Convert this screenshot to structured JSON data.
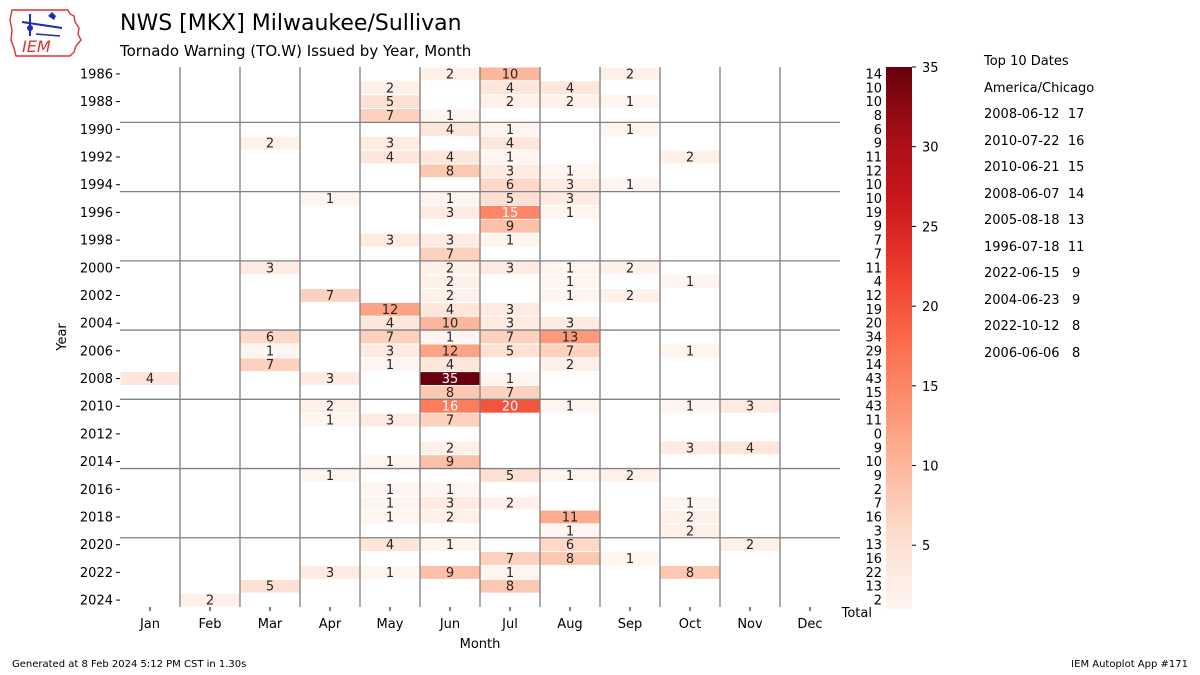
{
  "header": {
    "title": "NWS [MKX] Milwaukee/Sullivan",
    "subtitle": "Tornado Warning (TO.W) Issued by Year, Month",
    "logo_text": "IEM"
  },
  "footer": {
    "generated": "Generated at 8 Feb 2024 5:12 PM CST in 1.30s",
    "app": "IEM Autoplot App #171"
  },
  "top10": {
    "title": "Top 10 Dates",
    "timezone": "America/Chicago",
    "entries": [
      "2008-06-12  17",
      "2010-07-22  16",
      "2010-06-21  15",
      "2008-06-07  14",
      "2005-08-18  13",
      "1996-07-18  11",
      "2022-06-15   9",
      "2004-06-23   9",
      "2022-10-12   8",
      "2006-06-06   8"
    ]
  },
  "colors": {
    "gridline": "#808080",
    "background": "#ffffff"
  },
  "chart_data": {
    "type": "heatmap",
    "xlabel": "Month",
    "ylabel": "Year",
    "total_label": "Total",
    "x_categories": [
      "Jan",
      "Feb",
      "Mar",
      "Apr",
      "May",
      "Jun",
      "Jul",
      "Aug",
      "Sep",
      "Oct",
      "Nov",
      "Dec"
    ],
    "y_categories": [
      1986,
      1987,
      1988,
      1989,
      1990,
      1991,
      1992,
      1993,
      1994,
      1995,
      1996,
      1997,
      1998,
      1999,
      2000,
      2001,
      2002,
      2003,
      2004,
      2005,
      2006,
      2007,
      2008,
      2009,
      2010,
      2011,
      2012,
      2013,
      2014,
      2015,
      2016,
      2017,
      2018,
      2019,
      2020,
      2021,
      2022,
      2023,
      2024
    ],
    "y_tick_labels": [
      "1986",
      "1988",
      "1990",
      "1992",
      "1994",
      "1996",
      "1998",
      "2000",
      "2002",
      "2004",
      "2006",
      "2008",
      "2010",
      "2012",
      "2014",
      "2016",
      "2018",
      "2020",
      "2022",
      "2024"
    ],
    "values": [
      [
        null,
        null,
        null,
        null,
        null,
        2,
        10,
        null,
        2,
        null,
        null,
        null
      ],
      [
        null,
        null,
        null,
        null,
        2,
        null,
        4,
        4,
        null,
        null,
        null,
        null
      ],
      [
        null,
        null,
        null,
        null,
        5,
        null,
        2,
        2,
        1,
        null,
        null,
        null
      ],
      [
        null,
        null,
        null,
        null,
        7,
        1,
        null,
        null,
        null,
        null,
        null,
        null
      ],
      [
        null,
        null,
        null,
        null,
        null,
        4,
        1,
        null,
        1,
        null,
        null,
        null
      ],
      [
        null,
        null,
        2,
        null,
        3,
        null,
        4,
        null,
        null,
        null,
        null,
        null
      ],
      [
        null,
        null,
        null,
        null,
        4,
        4,
        1,
        null,
        null,
        2,
        null,
        null
      ],
      [
        null,
        null,
        null,
        null,
        null,
        8,
        3,
        1,
        null,
        null,
        null,
        null
      ],
      [
        null,
        null,
        null,
        null,
        null,
        null,
        6,
        3,
        1,
        null,
        null,
        null
      ],
      [
        null,
        null,
        null,
        1,
        null,
        1,
        5,
        3,
        null,
        null,
        null,
        null
      ],
      [
        null,
        null,
        null,
        null,
        null,
        3,
        15,
        1,
        null,
        null,
        null,
        null
      ],
      [
        null,
        null,
        null,
        null,
        null,
        null,
        9,
        null,
        null,
        null,
        null,
        null
      ],
      [
        null,
        null,
        null,
        null,
        3,
        3,
        1,
        null,
        null,
        null,
        null,
        null
      ],
      [
        null,
        null,
        null,
        null,
        null,
        7,
        null,
        null,
        null,
        null,
        null,
        null
      ],
      [
        null,
        null,
        3,
        null,
        null,
        2,
        3,
        1,
        2,
        null,
        null,
        null
      ],
      [
        null,
        null,
        null,
        null,
        null,
        2,
        null,
        1,
        null,
        1,
        null,
        null
      ],
      [
        null,
        null,
        null,
        7,
        null,
        2,
        null,
        1,
        2,
        null,
        null,
        null
      ],
      [
        null,
        null,
        null,
        null,
        12,
        4,
        3,
        null,
        null,
        null,
        null,
        null
      ],
      [
        null,
        null,
        null,
        null,
        4,
        10,
        3,
        3,
        null,
        null,
        null,
        null
      ],
      [
        null,
        null,
        6,
        null,
        7,
        1,
        7,
        13,
        null,
        null,
        null,
        null
      ],
      [
        null,
        null,
        1,
        null,
        3,
        12,
        5,
        7,
        null,
        1,
        null,
        null
      ],
      [
        null,
        null,
        7,
        null,
        1,
        4,
        null,
        2,
        null,
        null,
        null,
        null
      ],
      [
        4,
        null,
        null,
        3,
        null,
        35,
        1,
        null,
        null,
        null,
        null,
        null
      ],
      [
        null,
        null,
        null,
        null,
        null,
        8,
        7,
        null,
        null,
        null,
        null,
        null
      ],
      [
        null,
        null,
        null,
        2,
        null,
        16,
        20,
        1,
        null,
        1,
        3,
        null
      ],
      [
        null,
        null,
        null,
        1,
        3,
        7,
        null,
        null,
        null,
        null,
        null,
        null
      ],
      [
        null,
        null,
        null,
        null,
        null,
        null,
        null,
        null,
        null,
        null,
        null,
        null
      ],
      [
        null,
        null,
        null,
        null,
        null,
        2,
        null,
        null,
        null,
        3,
        4,
        null
      ],
      [
        null,
        null,
        null,
        null,
        1,
        9,
        null,
        null,
        null,
        null,
        null,
        null
      ],
      [
        null,
        null,
        null,
        1,
        null,
        null,
        5,
        1,
        2,
        null,
        null,
        null
      ],
      [
        null,
        null,
        null,
        null,
        1,
        1,
        null,
        null,
        null,
        null,
        null,
        null
      ],
      [
        null,
        null,
        null,
        null,
        1,
        3,
        2,
        null,
        null,
        1,
        null,
        null
      ],
      [
        null,
        null,
        null,
        null,
        1,
        2,
        null,
        11,
        null,
        2,
        null,
        null
      ],
      [
        null,
        null,
        null,
        null,
        null,
        null,
        null,
        1,
        null,
        2,
        null,
        null
      ],
      [
        null,
        null,
        null,
        null,
        4,
        1,
        null,
        6,
        null,
        null,
        2,
        null
      ],
      [
        null,
        null,
        null,
        null,
        null,
        null,
        7,
        8,
        1,
        null,
        null,
        null
      ],
      [
        null,
        null,
        null,
        3,
        1,
        9,
        1,
        null,
        null,
        8,
        null,
        null
      ],
      [
        null,
        null,
        5,
        null,
        null,
        null,
        8,
        null,
        null,
        null,
        null,
        null
      ],
      [
        null,
        2,
        null,
        null,
        null,
        null,
        null,
        null,
        null,
        null,
        null,
        null
      ]
    ],
    "totals": [
      14,
      10,
      10,
      8,
      6,
      9,
      11,
      12,
      10,
      10,
      19,
      9,
      7,
      7,
      11,
      4,
      12,
      19,
      20,
      34,
      29,
      14,
      43,
      15,
      43,
      11,
      0,
      9,
      10,
      9,
      2,
      7,
      16,
      3,
      13,
      16,
      22,
      13,
      2
    ],
    "colorbar": {
      "min": 1,
      "max": 35,
      "ticks": [
        5,
        10,
        15,
        20,
        25,
        30,
        35
      ],
      "colormap": "Reds"
    },
    "grid": true
  }
}
